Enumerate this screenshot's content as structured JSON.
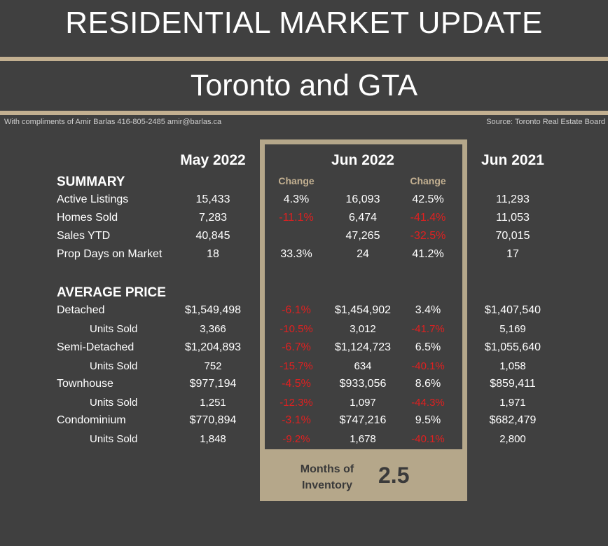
{
  "header": {
    "title": "RESIDENTIAL MARKET UPDATE",
    "subtitle": "Toronto and GTA",
    "credits_left": "With compliments of Amir Barlas 416-805-2485 amir@barlas.ca",
    "credits_right": "Source: Toronto Real Estate Board"
  },
  "columns": {
    "may2022": "May 2022",
    "jun2022": "Jun 2022",
    "jun2021": "Jun 2021",
    "change": "Change"
  },
  "sections": {
    "summary": "SUMMARY",
    "average_price": "AVERAGE PRICE"
  },
  "rows": [
    {
      "label": "Active Listings",
      "may": "15,433",
      "chg1": "4.3%",
      "jun22": "16,093",
      "chg2": "42.5%",
      "jun21": "11,293"
    },
    {
      "label": "Homes Sold",
      "may": "7,283",
      "chg1": "-11.1%",
      "jun22": "6,474",
      "chg2": "-41.4%",
      "jun21": "11,053"
    },
    {
      "label": "Sales YTD",
      "may": "40,845",
      "chg1": "",
      "jun22": "47,265",
      "chg2": "-32.5%",
      "jun21": "70,015"
    },
    {
      "label": "Prop Days on Market",
      "may": "18",
      "chg1": "33.3%",
      "jun22": "24",
      "chg2": "41.2%",
      "jun21": "17"
    },
    {
      "label": "Detached",
      "may": "$1,549,498",
      "chg1": "-6.1%",
      "jun22": "$1,454,902",
      "chg2": "3.4%",
      "jun21": "$1,407,540"
    },
    {
      "label": "Units Sold",
      "may": "3,366",
      "chg1": "-10.5%",
      "jun22": "3,012",
      "chg2": "-41.7%",
      "jun21": "5,169"
    },
    {
      "label": "Semi-Detached",
      "may": "$1,204,893",
      "chg1": "-6.7%",
      "jun22": "$1,124,723",
      "chg2": "6.5%",
      "jun21": "$1,055,640"
    },
    {
      "label": "Units Sold",
      "may": "752",
      "chg1": "-15.7%",
      "jun22": "634",
      "chg2": "-40.1%",
      "jun21": "1,058"
    },
    {
      "label": "Townhouse",
      "may": "$977,194",
      "chg1": "-4.5%",
      "jun22": "$933,056",
      "chg2": "8.6%",
      "jun21": "$859,411"
    },
    {
      "label": "Units Sold",
      "may": "1,251",
      "chg1": "-12.3%",
      "jun22": "1,097",
      "chg2": "-44.3%",
      "jun21": "1,971"
    },
    {
      "label": "Condominium",
      "may": "$770,894",
      "chg1": "-3.1%",
      "jun22": "$747,216",
      "chg2": "9.5%",
      "jun21": "$682,479"
    },
    {
      "label": "Units Sold",
      "may": "1,848",
      "chg1": "-9.2%",
      "jun22": "1,678",
      "chg2": "-40.1%",
      "jun21": "2,800"
    }
  ],
  "months_of_inventory": {
    "label": "Months of Inventory",
    "value": "2.5"
  },
  "colors": {
    "background": "#404040",
    "accent": "#c3b091",
    "negative": "#e02020"
  }
}
